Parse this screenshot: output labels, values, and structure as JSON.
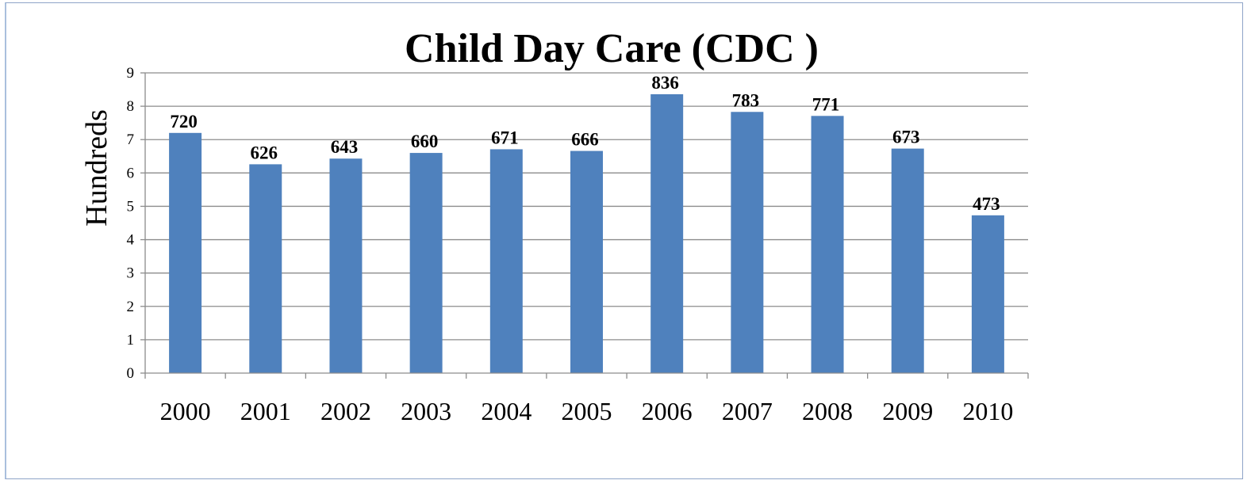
{
  "chart_data": {
    "type": "bar",
    "title": "Child Day Care (CDC )",
    "xlabel": "",
    "ylabel": "Hundreds",
    "categories": [
      "2000",
      "2001",
      "2002",
      "2003",
      "2004",
      "2005",
      "2006",
      "2007",
      "2008",
      "2009",
      "2010"
    ],
    "values": [
      7.2,
      6.26,
      6.43,
      6.6,
      6.71,
      6.66,
      8.36,
      7.83,
      7.71,
      6.73,
      4.73
    ],
    "data_labels": [
      "720",
      "626",
      "643",
      "660",
      "671",
      "666",
      "836",
      "783",
      "771",
      "673",
      "473"
    ],
    "ylim": [
      0,
      9
    ],
    "yticks": [
      "0",
      "1",
      "2",
      "3",
      "4",
      "5",
      "6",
      "7",
      "8",
      "9"
    ],
    "grid": true,
    "legend": "none",
    "bar_color": "#4f81bd",
    "grid_color": "#8c8c8c"
  }
}
